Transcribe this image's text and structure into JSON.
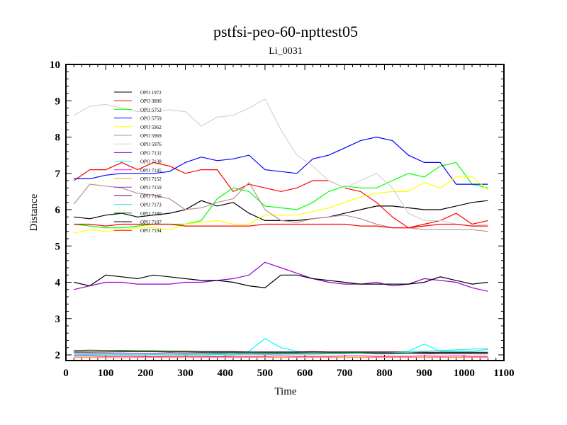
{
  "chart_data": {
    "type": "line",
    "title": "pstfsi-peo-60-npttest05",
    "subtitle": "Li_0031",
    "xlabel": "Time",
    "ylabel": "Distance",
    "xlim": [
      0,
      1100
    ],
    "ylim": [
      1.85,
      10
    ],
    "xticks": [
      0,
      100,
      200,
      300,
      400,
      500,
      600,
      700,
      800,
      900,
      1000,
      1100
    ],
    "yticks": [
      2,
      3,
      4,
      5,
      6,
      7,
      8,
      9,
      10
    ],
    "legend_position": "top-left",
    "x": [
      20,
      60,
      100,
      140,
      180,
      220,
      260,
      300,
      340,
      380,
      420,
      460,
      500,
      540,
      580,
      620,
      660,
      700,
      740,
      780,
      820,
      860,
      900,
      940,
      980,
      1020,
      1060
    ],
    "series": [
      {
        "name": "OPO 1972",
        "color": "#000000",
        "values": [
          5.8,
          5.75,
          5.85,
          5.9,
          5.8,
          5.85,
          5.9,
          6.0,
          6.25,
          6.1,
          6.2,
          5.9,
          5.7,
          5.7,
          5.7,
          5.75,
          5.8,
          5.9,
          6.0,
          6.1,
          6.1,
          6.05,
          6.0,
          6.0,
          6.1,
          6.2,
          6.25
        ]
      },
      {
        "name": "OPO 3890",
        "color": "#ff0000",
        "values": [
          6.8,
          7.1,
          7.1,
          7.3,
          7.1,
          7.3,
          7.2,
          7.0,
          7.1,
          7.1,
          6.5,
          6.7,
          6.6,
          6.5,
          6.6,
          6.8,
          6.8,
          6.6,
          6.5,
          6.2,
          5.8,
          5.5,
          5.6,
          5.7,
          5.9,
          5.6,
          5.7
        ]
      },
      {
        "name": "OPO 5752",
        "color": "#00ff00",
        "values": [
          5.6,
          5.55,
          5.5,
          5.5,
          5.55,
          5.6,
          5.6,
          5.6,
          5.7,
          6.3,
          6.6,
          6.5,
          6.1,
          6.05,
          6.0,
          6.2,
          6.5,
          6.65,
          6.6,
          6.6,
          6.8,
          7.0,
          6.9,
          7.2,
          7.3,
          6.7,
          6.6
        ]
      },
      {
        "name": "OPO 5759",
        "color": "#0000ff",
        "values": [
          6.85,
          6.85,
          6.95,
          7.0,
          7.0,
          7.0,
          7.05,
          7.3,
          7.45,
          7.35,
          7.4,
          7.5,
          7.1,
          7.05,
          7.0,
          7.4,
          7.5,
          7.7,
          7.9,
          8.0,
          7.9,
          7.5,
          7.3,
          7.3,
          6.7,
          6.7,
          6.7
        ]
      },
      {
        "name": "OPO 5962",
        "color": "#ffff00",
        "values": [
          5.35,
          5.45,
          5.4,
          5.45,
          5.5,
          5.5,
          5.45,
          5.6,
          5.65,
          5.7,
          5.6,
          5.6,
          5.85,
          5.85,
          5.85,
          5.95,
          6.05,
          6.2,
          6.35,
          6.45,
          6.5,
          6.5,
          6.75,
          6.6,
          6.9,
          6.9,
          6.55
        ]
      },
      {
        "name": "OPO 5969",
        "color": "#bc8f8f",
        "values": [
          6.15,
          6.7,
          6.65,
          6.6,
          6.45,
          6.4,
          6.3,
          6.0,
          6.05,
          6.2,
          6.3,
          6.75,
          6.0,
          5.7,
          5.65,
          5.75,
          5.8,
          5.85,
          5.75,
          5.6,
          5.5,
          5.5,
          5.45,
          5.45,
          5.45,
          5.45,
          5.4
        ]
      },
      {
        "name": "OPO 5976",
        "color": "#d3d3d3",
        "values": [
          8.6,
          8.85,
          8.9,
          8.8,
          8.7,
          8.7,
          8.75,
          8.7,
          8.3,
          8.55,
          8.6,
          8.8,
          9.05,
          8.2,
          7.5,
          7.2,
          6.8,
          6.6,
          6.8,
          7.0,
          6.6,
          5.9,
          5.7,
          5.7,
          5.6,
          5.55,
          5.6
        ]
      },
      {
        "name": "OPO 7131",
        "color": "#9400d3",
        "values": [
          3.8,
          3.9,
          4.0,
          4.0,
          3.95,
          3.95,
          3.95,
          4.0,
          4.0,
          4.05,
          4.1,
          4.2,
          4.55,
          4.4,
          4.25,
          4.1,
          4.0,
          3.95,
          3.95,
          4.0,
          3.9,
          3.95,
          4.1,
          4.05,
          4.0,
          3.85,
          3.75
        ]
      },
      {
        "name": "OPO 7138",
        "color": "#00ffff",
        "values": [
          2.0,
          2.0,
          2.0,
          2.0,
          2.0,
          2.0,
          2.0,
          2.0,
          2.0,
          2.0,
          2.0,
          2.1,
          2.45,
          2.2,
          2.1,
          2.05,
          2.05,
          2.05,
          2.05,
          2.05,
          2.05,
          2.1,
          2.3,
          2.1,
          2.1,
          2.1,
          2.15
        ]
      },
      {
        "name": "OPO 7145",
        "color": "#ff00ff",
        "values": [
          1.97,
          1.97,
          1.96,
          1.96,
          1.96,
          1.95,
          1.96,
          1.96,
          1.96,
          1.95,
          1.96,
          1.96,
          1.96,
          1.97,
          1.96,
          1.96,
          1.96,
          1.97,
          1.97,
          1.96,
          1.96,
          1.96,
          1.97,
          1.96,
          1.97,
          1.96,
          1.96
        ]
      },
      {
        "name": "OPO 7152",
        "color": "#ffa500",
        "values": [
          1.93,
          1.93,
          1.93,
          1.92,
          1.93,
          1.93,
          1.93,
          1.93,
          1.93,
          1.93,
          1.93,
          1.93,
          1.93,
          1.93,
          1.93,
          1.93,
          1.93,
          1.93,
          1.93,
          1.93,
          1.93,
          1.93,
          1.93,
          1.93,
          1.93,
          1.93,
          1.93
        ]
      },
      {
        "name": "OPO 7159",
        "color": "#7f3fbf",
        "values": [
          2.05,
          2.05,
          2.04,
          2.05,
          2.04,
          2.04,
          2.05,
          2.04,
          2.04,
          2.04,
          2.05,
          2.04,
          2.04,
          2.04,
          2.04,
          2.05,
          2.04,
          2.04,
          2.04,
          2.03,
          2.03,
          2.04,
          2.03,
          2.03,
          2.03,
          2.03,
          2.03
        ]
      },
      {
        "name": "OPO 7166",
        "color": "#551133",
        "values": [
          2.12,
          2.13,
          2.12,
          2.12,
          2.11,
          2.11,
          2.1,
          2.1,
          2.09,
          2.09,
          2.09,
          2.08,
          2.08,
          2.08,
          2.08,
          2.09,
          2.08,
          2.08,
          2.08,
          2.08,
          2.08,
          2.08,
          2.07,
          2.07,
          2.07,
          2.07,
          2.07
        ]
      },
      {
        "name": "OPO 7173",
        "color": "#40e0d0",
        "values": [
          2.0,
          2.01,
          2.0,
          2.01,
          2.0,
          2.01,
          2.0,
          2.01,
          2.0,
          2.02,
          2.01,
          2.02,
          2.01,
          2.02,
          2.02,
          2.02,
          2.03,
          2.03,
          2.04,
          2.05,
          2.06,
          2.08,
          2.1,
          2.12,
          2.14,
          2.16,
          2.17
        ]
      },
      {
        "name": "OPO 7180",
        "color": "#008000",
        "values": [
          2.08,
          2.08,
          2.08,
          2.09,
          2.09,
          2.09,
          2.08,
          2.08,
          2.07,
          2.07,
          2.07,
          2.07,
          2.06,
          2.06,
          2.06,
          2.06,
          2.06,
          2.06,
          2.06,
          2.05,
          2.05,
          2.05,
          2.05,
          2.04,
          2.04,
          2.04,
          2.04
        ]
      },
      {
        "name": "OPO 7187",
        "color": "#000000",
        "values": [
          4.0,
          3.9,
          4.2,
          4.15,
          4.1,
          4.2,
          4.15,
          4.1,
          4.05,
          4.05,
          4.0,
          3.9,
          3.85,
          4.2,
          4.2,
          4.1,
          4.05,
          4.0,
          3.95,
          3.95,
          3.95,
          3.95,
          4.0,
          4.15,
          4.05,
          3.95,
          4.0
        ]
      },
      {
        "name": "OPO 7194",
        "color": "#ff0000",
        "values": [
          5.6,
          5.6,
          5.55,
          5.6,
          5.6,
          5.6,
          5.6,
          5.55,
          5.55,
          5.55,
          5.55,
          5.55,
          5.6,
          5.6,
          5.6,
          5.6,
          5.6,
          5.6,
          5.55,
          5.55,
          5.5,
          5.5,
          5.55,
          5.6,
          5.6,
          5.55,
          5.55
        ]
      }
    ]
  }
}
